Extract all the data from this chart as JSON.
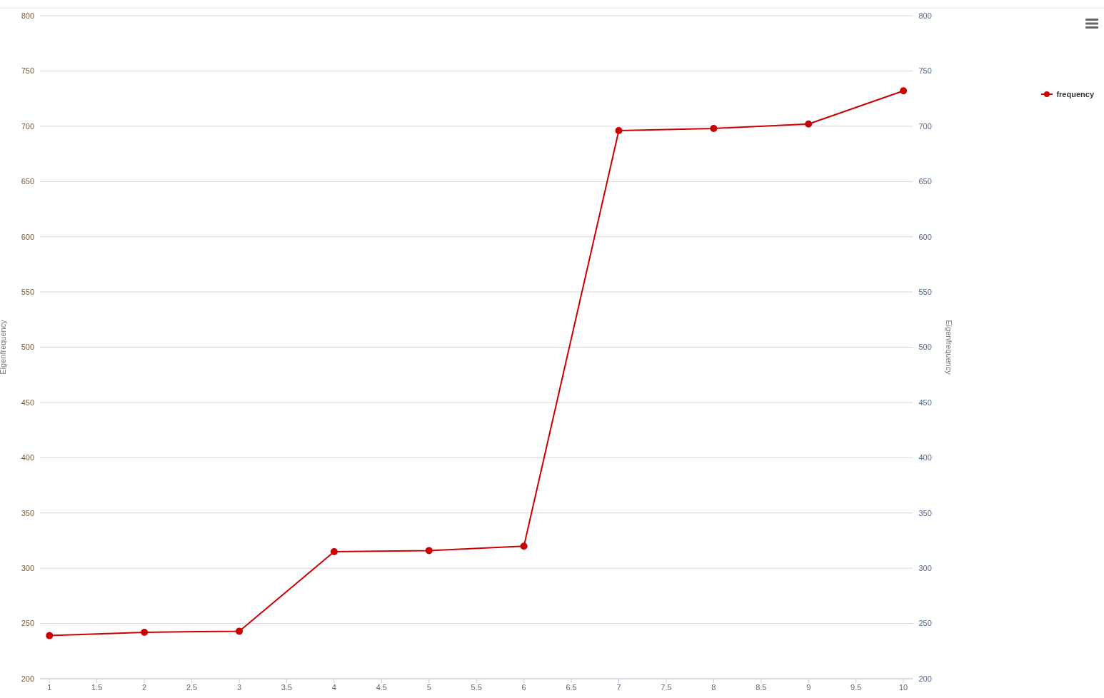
{
  "chart_data": {
    "type": "line",
    "xlabel": null,
    "ylabel": "Eigenfrequency",
    "y2label": "Eigenfrequency",
    "x": [
      1,
      2,
      3,
      4,
      5,
      6,
      7,
      8,
      9,
      10
    ],
    "series": [
      {
        "name": "frequency",
        "color": "#cc0000",
        "values": [
          239,
          242,
          243,
          315,
          316,
          320,
          696,
          698,
          702,
          732
        ]
      }
    ],
    "xlim": [
      0.9,
      10.1
    ],
    "xticks": [
      1,
      1.5,
      2,
      2.5,
      3,
      3.5,
      4,
      4.5,
      5,
      5.5,
      6,
      6.5,
      7,
      7.5,
      8,
      8.5,
      9,
      9.5,
      10
    ],
    "ylim": [
      200,
      800
    ],
    "yticks": [
      200,
      250,
      300,
      350,
      400,
      450,
      500,
      550,
      600,
      650,
      700,
      750,
      800
    ],
    "y2lim": [
      200,
      800
    ],
    "y2ticks": [
      200,
      250,
      300,
      350,
      400,
      450,
      500,
      550,
      600,
      650,
      700,
      750,
      800
    ],
    "grid": "y",
    "legend": "top right",
    "marker": "circle",
    "line_style": "solid"
  }
}
